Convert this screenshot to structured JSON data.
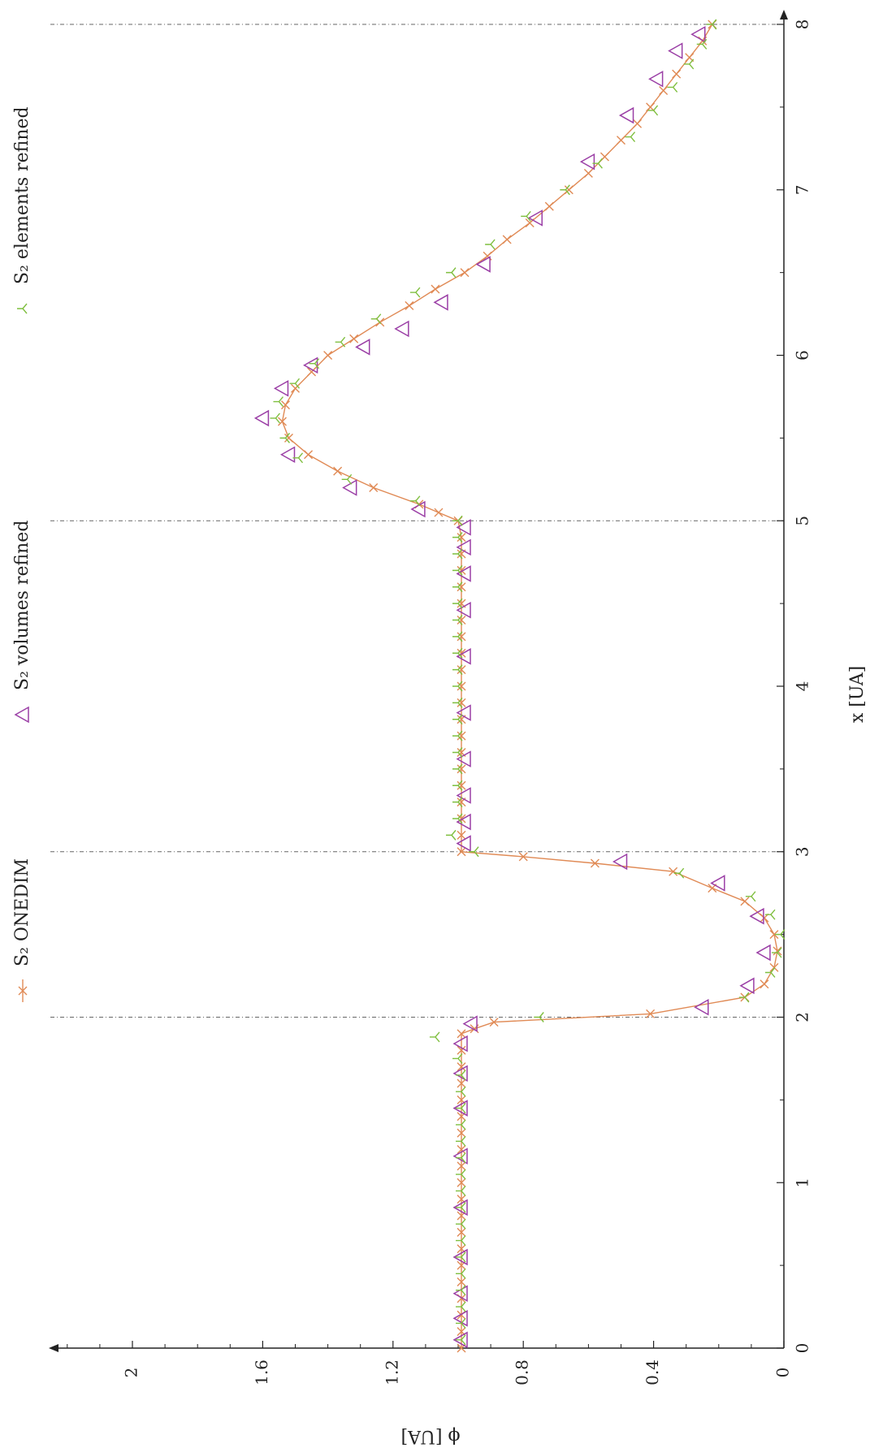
{
  "chart_data": {
    "type": "line",
    "orientation": "rotated-90-ccw",
    "xlabel": "x [UA]",
    "ylabel": "ϕ [UA]",
    "xlim": [
      0,
      8
    ],
    "ylim": [
      0,
      2.2
    ],
    "x_ticks": [
      "0",
      "1",
      "2",
      "3",
      "4",
      "5",
      "6",
      "7",
      "8"
    ],
    "y_ticks": [
      "0",
      "0.4",
      "0.8",
      "1.2",
      "1.6",
      "2"
    ],
    "vlines": [
      2,
      3,
      5,
      8
    ],
    "grid": false,
    "legend_position": "top",
    "series": [
      {
        "name": "S₂ ONEDIM",
        "color": "#e08a55",
        "marker": "cross",
        "line": true,
        "x": [
          0,
          0.1,
          0.2,
          0.3,
          0.4,
          0.5,
          0.6,
          0.7,
          0.8,
          0.9,
          1.0,
          1.1,
          1.2,
          1.3,
          1.4,
          1.5,
          1.6,
          1.7,
          1.8,
          1.9,
          1.93,
          1.97,
          2.02,
          2.12,
          2.2,
          2.3,
          2.4,
          2.5,
          2.6,
          2.7,
          2.78,
          2.88,
          2.93,
          2.97,
          3.0,
          3.1,
          3.2,
          3.3,
          3.4,
          3.5,
          3.6,
          3.7,
          3.8,
          3.9,
          4.0,
          4.1,
          4.2,
          4.3,
          4.4,
          4.5,
          4.6,
          4.7,
          4.8,
          4.9,
          5.0,
          5.05,
          5.1,
          5.2,
          5.3,
          5.4,
          5.5,
          5.6,
          5.7,
          5.8,
          5.9,
          6.0,
          6.1,
          6.2,
          6.3,
          6.4,
          6.5,
          6.6,
          6.7,
          6.8,
          6.9,
          7.0,
          7.1,
          7.2,
          7.3,
          7.4,
          7.5,
          7.6,
          7.7,
          7.8,
          7.9,
          8.0
        ],
        "y": [
          0.99,
          0.99,
          0.99,
          0.99,
          0.99,
          0.99,
          0.99,
          0.99,
          0.99,
          0.99,
          0.99,
          0.99,
          0.99,
          0.99,
          0.99,
          0.99,
          0.99,
          0.99,
          0.99,
          0.99,
          0.95,
          0.89,
          0.41,
          0.12,
          0.06,
          0.03,
          0.02,
          0.03,
          0.06,
          0.12,
          0.22,
          0.34,
          0.58,
          0.8,
          0.99,
          0.99,
          0.99,
          0.99,
          0.99,
          0.99,
          0.99,
          0.99,
          0.99,
          0.99,
          0.99,
          0.99,
          0.99,
          0.99,
          0.99,
          0.99,
          0.99,
          0.99,
          0.99,
          0.99,
          1.0,
          1.06,
          1.12,
          1.26,
          1.37,
          1.46,
          1.52,
          1.54,
          1.53,
          1.5,
          1.45,
          1.4,
          1.32,
          1.24,
          1.15,
          1.07,
          0.98,
          0.91,
          0.85,
          0.78,
          0.72,
          0.66,
          0.6,
          0.55,
          0.5,
          0.45,
          0.41,
          0.37,
          0.33,
          0.29,
          0.25,
          0.22
        ]
      },
      {
        "name": "S₂ volumes refined",
        "color": "#9b3fa6",
        "marker": "triangle",
        "line": false,
        "x": [
          0.05,
          0.18,
          0.33,
          0.55,
          0.85,
          1.16,
          1.45,
          1.66,
          1.84,
          1.96,
          2.06,
          2.19,
          2.39,
          2.61,
          2.81,
          2.94,
          3.05,
          3.18,
          3.34,
          3.56,
          3.84,
          4.18,
          4.46,
          4.68,
          4.84,
          4.96,
          5.07,
          5.2,
          5.4,
          5.62,
          5.8,
          5.94,
          6.05,
          6.16,
          6.32,
          6.55,
          6.83,
          7.17,
          7.45,
          7.67,
          7.84,
          7.94
        ],
        "y": [
          0.99,
          0.99,
          0.99,
          0.99,
          0.99,
          0.99,
          0.99,
          0.99,
          0.99,
          0.96,
          0.25,
          0.11,
          0.06,
          0.08,
          0.2,
          0.5,
          0.98,
          0.98,
          0.98,
          0.98,
          0.98,
          0.98,
          0.98,
          0.98,
          0.98,
          0.98,
          1.12,
          1.33,
          1.52,
          1.6,
          1.54,
          1.45,
          1.29,
          1.17,
          1.05,
          0.92,
          0.76,
          0.6,
          0.48,
          0.39,
          0.33,
          0.26
        ]
      },
      {
        "name": "S₂ elements refined",
        "color": "#7fbf3f",
        "marker": "tri-left",
        "line": false,
        "x": [
          0.05,
          0.15,
          0.25,
          0.35,
          0.45,
          0.55,
          0.65,
          0.75,
          0.85,
          0.95,
          1.05,
          1.15,
          1.25,
          1.35,
          1.45,
          1.55,
          1.65,
          1.75,
          1.88,
          2.0,
          2.12,
          2.27,
          2.39,
          2.5,
          2.62,
          2.73,
          2.87,
          3.0,
          3.1,
          3.2,
          3.3,
          3.4,
          3.5,
          3.6,
          3.7,
          3.8,
          3.9,
          4.0,
          4.1,
          4.2,
          4.3,
          4.4,
          4.5,
          4.6,
          4.7,
          4.8,
          4.9,
          5.0,
          5.12,
          5.25,
          5.38,
          5.5,
          5.62,
          5.72,
          5.83,
          5.95,
          6.08,
          6.22,
          6.38,
          6.5,
          6.67,
          6.84,
          7.0,
          7.16,
          7.32,
          7.48,
          7.62,
          7.76,
          7.88,
          8.0
        ],
        "y": [
          0.99,
          0.99,
          0.99,
          0.99,
          0.99,
          0.99,
          0.99,
          0.99,
          0.99,
          0.99,
          0.99,
          0.99,
          0.99,
          0.99,
          0.99,
          0.99,
          0.99,
          1.0,
          1.07,
          0.75,
          0.12,
          0.04,
          0.02,
          0.01,
          0.04,
          0.1,
          0.32,
          0.95,
          1.02,
          1.0,
          1.0,
          1.0,
          1.0,
          1.0,
          1.0,
          1.0,
          1.0,
          1.0,
          1.0,
          1.0,
          1.0,
          1.0,
          1.0,
          1.0,
          1.0,
          1.0,
          1.0,
          1.0,
          1.13,
          1.34,
          1.49,
          1.53,
          1.56,
          1.55,
          1.5,
          1.44,
          1.36,
          1.25,
          1.13,
          1.02,
          0.9,
          0.79,
          0.67,
          0.57,
          0.47,
          0.4,
          0.34,
          0.29,
          0.25,
          0.22
        ]
      }
    ]
  }
}
